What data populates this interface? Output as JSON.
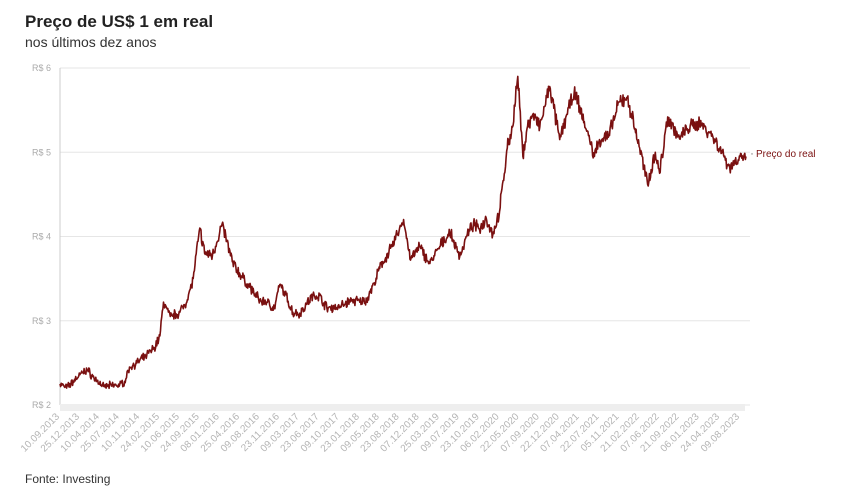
{
  "header": {
    "title": "Preço de US$ 1 em real",
    "subtitle": "nos últimos dez anos"
  },
  "footer": {
    "source": "Fonte: Investing"
  },
  "colors": {
    "line": "#7a1010",
    "grid": "#e6e6e6",
    "axis": "#cccccc"
  },
  "chart_data": {
    "type": "line",
    "title": "Preço de US$ 1 em real",
    "subtitle": "nos últimos dez anos",
    "ylim": [
      2,
      6
    ],
    "yticks": [
      2,
      3,
      4,
      5,
      6
    ],
    "ytick_labels": [
      "R$ 2",
      "R$ 3",
      "R$ 4",
      "R$ 5",
      "R$ 6"
    ],
    "x_tick_labels": [
      "10.09.2013",
      "25.12.2013",
      "10.04.2014",
      "25.07.2014",
      "10.11.2014",
      "24.02.2015",
      "10.06.2015",
      "24.09.2015",
      "08.01.2016",
      "25.04.2016",
      "09.08.2016",
      "23.11.2016",
      "09.03.2017",
      "23.06.2017",
      "09.10.2017",
      "23.01.2018",
      "09.05.2018",
      "23.08.2018",
      "07.12.2018",
      "25.03.2019",
      "09.07.2019",
      "23.10.2019",
      "06.02.2020",
      "22.05.2020",
      "07.09.2020",
      "22.12.2020",
      "07.04.2021",
      "22.07.2021",
      "05.11.2021",
      "21.02.2022",
      "07.06.2022",
      "21.09.2022",
      "06.01.2023",
      "24.04.2023",
      "09.08.2023"
    ],
    "series": [
      {
        "name": "Preço do real",
        "x": [
          "2013-09-10",
          "2013-10-15",
          "2013-12-25",
          "2014-02-01",
          "2014-03-10",
          "2014-05-01",
          "2014-07-25",
          "2014-08-20",
          "2014-09-15",
          "2014-10-25",
          "2014-12-10",
          "2015-01-25",
          "2015-02-24",
          "2015-03-15",
          "2015-04-20",
          "2015-06-10",
          "2015-07-20",
          "2015-08-20",
          "2015-09-24",
          "2015-10-20",
          "2015-12-01",
          "2016-01-08",
          "2016-01-21",
          "2016-03-15",
          "2016-04-25",
          "2016-06-15",
          "2016-08-09",
          "2016-09-15",
          "2016-10-25",
          "2016-11-23",
          "2016-12-15",
          "2017-02-01",
          "2017-03-09",
          "2017-05-18",
          "2017-06-23",
          "2017-08-01",
          "2017-10-09",
          "2017-12-15",
          "2018-01-23",
          "2018-03-01",
          "2018-04-10",
          "2018-05-09",
          "2018-06-10",
          "2018-07-15",
          "2018-08-23",
          "2018-09-13",
          "2018-10-20",
          "2018-12-07",
          "2019-01-31",
          "2019-03-25",
          "2019-05-17",
          "2019-07-09",
          "2019-08-15",
          "2019-09-20",
          "2019-10-23",
          "2019-11-27",
          "2020-01-01",
          "2020-02-06",
          "2020-03-18",
          "2020-04-15",
          "2020-05-13",
          "2020-06-09",
          "2020-07-01",
          "2020-08-01",
          "2020-09-07",
          "2020-10-30",
          "2020-12-22",
          "2021-01-29",
          "2021-03-09",
          "2021-04-07",
          "2021-05-15",
          "2021-06-25",
          "2021-07-22",
          "2021-09-10",
          "2021-11-05",
          "2021-12-17",
          "2022-02-21",
          "2022-04-04",
          "2022-05-15",
          "2022-06-07",
          "2022-07-20",
          "2022-09-21",
          "2022-11-01",
          "2023-01-06",
          "2023-03-01",
          "2023-04-24",
          "2023-06-15",
          "2023-08-09",
          "2023-09-10"
        ],
        "y": [
          2.25,
          2.2,
          2.36,
          2.42,
          2.32,
          2.22,
          2.24,
          2.28,
          2.45,
          2.5,
          2.58,
          2.68,
          2.82,
          3.22,
          3.05,
          3.1,
          3.25,
          3.5,
          4.1,
          3.8,
          3.78,
          4.05,
          4.15,
          3.7,
          3.55,
          3.4,
          3.24,
          3.22,
          3.15,
          3.43,
          3.35,
          3.1,
          3.09,
          3.3,
          3.3,
          3.15,
          3.17,
          3.25,
          3.22,
          3.25,
          3.45,
          3.62,
          3.75,
          3.88,
          4.1,
          4.2,
          3.72,
          3.88,
          3.68,
          3.88,
          4.05,
          3.76,
          4.0,
          4.15,
          4.08,
          4.22,
          4.02,
          4.3,
          5.05,
          5.3,
          5.9,
          4.95,
          5.28,
          5.45,
          5.3,
          5.78,
          5.15,
          5.45,
          5.7,
          5.55,
          5.25,
          4.95,
          5.15,
          5.2,
          5.6,
          5.65,
          5.05,
          4.62,
          5.0,
          4.75,
          5.42,
          5.16,
          5.28,
          5.35,
          5.24,
          5.05,
          4.82,
          4.95,
          4.95
        ]
      }
    ],
    "grid": true,
    "legend": "inline-right",
    "xlabel": "",
    "ylabel": ""
  }
}
